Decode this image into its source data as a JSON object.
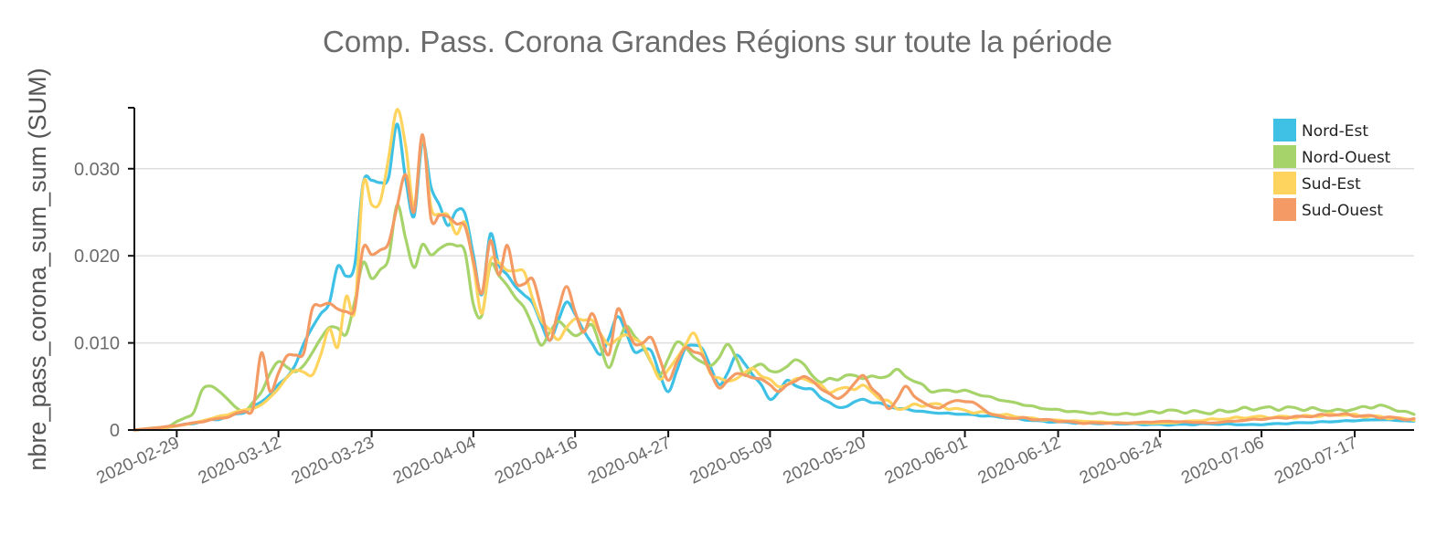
{
  "chart_data": {
    "type": "line",
    "title": "Comp. Pass. Corona Grandes Régions sur toute la période",
    "xlabel": "",
    "ylabel": "nbre_pass_corona_sum_sum (SUM)",
    "x_start": "2020-02-24",
    "x_end": "2020-07-24",
    "ylim": [
      0,
      0.037
    ],
    "y_ticks": [
      "0",
      "0.010",
      "0.020",
      "0.030"
    ],
    "y_tick_values": [
      0,
      0.01,
      0.02,
      0.03
    ],
    "x_tick_labels": [
      "2020-02-29",
      "2020-03-12",
      "2020-03-23",
      "2020-04-04",
      "2020-04-16",
      "2020-04-27",
      "2020-05-09",
      "2020-05-20",
      "2020-06-01",
      "2020-06-12",
      "2020-06-24",
      "2020-07-06",
      "2020-07-17"
    ],
    "grid": true,
    "legend_position": "top-right",
    "series": [
      {
        "name": "Nord-Est",
        "color": "#3fc1e6",
        "points": [
          [
            "2020-02-24",
            0.0
          ],
          [
            "2020-02-28",
            0.0003
          ],
          [
            "2020-03-02",
            0.0008
          ],
          [
            "2020-03-06",
            0.0015
          ],
          [
            "2020-03-09",
            0.0025
          ],
          [
            "2020-03-12",
            0.005
          ],
          [
            "2020-03-14",
            0.0075
          ],
          [
            "2020-03-16",
            0.012
          ],
          [
            "2020-03-18",
            0.0145
          ],
          [
            "2020-03-19",
            0.019
          ],
          [
            "2020-03-20",
            0.0175
          ],
          [
            "2020-03-21",
            0.019
          ],
          [
            "2020-03-22",
            0.0285
          ],
          [
            "2020-03-24",
            0.0285
          ],
          [
            "2020-03-25",
            0.029
          ],
          [
            "2020-03-26",
            0.035
          ],
          [
            "2020-03-27",
            0.029
          ],
          [
            "2020-03-28",
            0.0245
          ],
          [
            "2020-03-29",
            0.033
          ],
          [
            "2020-03-30",
            0.028
          ],
          [
            "2020-04-01",
            0.0235
          ],
          [
            "2020-04-02",
            0.0252
          ],
          [
            "2020-04-03",
            0.0248
          ],
          [
            "2020-04-05",
            0.0155
          ],
          [
            "2020-04-06",
            0.0225
          ],
          [
            "2020-04-07",
            0.019
          ],
          [
            "2020-04-09",
            0.0165
          ],
          [
            "2020-04-11",
            0.0145
          ],
          [
            "2020-04-13",
            0.0102
          ],
          [
            "2020-04-15",
            0.0148
          ],
          [
            "2020-04-17",
            0.0115
          ],
          [
            "2020-04-19",
            0.0085
          ],
          [
            "2020-04-21",
            0.013
          ],
          [
            "2020-04-23",
            0.0092
          ],
          [
            "2020-04-25",
            0.009
          ],
          [
            "2020-04-27",
            0.0042
          ],
          [
            "2020-04-29",
            0.0095
          ],
          [
            "2020-05-01",
            0.0095
          ],
          [
            "2020-05-03",
            0.005
          ],
          [
            "2020-05-05",
            0.0085
          ],
          [
            "2020-05-07",
            0.0065
          ],
          [
            "2020-05-09",
            0.0035
          ],
          [
            "2020-05-11",
            0.0055
          ],
          [
            "2020-05-14",
            0.0045
          ],
          [
            "2020-05-17",
            0.0025
          ],
          [
            "2020-05-20",
            0.0035
          ],
          [
            "2020-05-24",
            0.0025
          ],
          [
            "2020-05-28",
            0.002
          ],
          [
            "2020-06-01",
            0.0018
          ],
          [
            "2020-06-05",
            0.0015
          ],
          [
            "2020-06-10",
            0.001
          ],
          [
            "2020-06-15",
            0.0008
          ],
          [
            "2020-06-20",
            0.0007
          ],
          [
            "2020-06-25",
            0.0006
          ],
          [
            "2020-06-30",
            0.0007
          ],
          [
            "2020-07-05",
            0.0006
          ],
          [
            "2020-07-10",
            0.0008
          ],
          [
            "2020-07-15",
            0.001
          ],
          [
            "2020-07-20",
            0.0012
          ],
          [
            "2020-07-24",
            0.001
          ]
        ]
      },
      {
        "name": "Nord-Ouest",
        "color": "#a7d36b",
        "points": [
          [
            "2020-02-24",
            0.0
          ],
          [
            "2020-02-28",
            0.0004
          ],
          [
            "2020-03-02",
            0.002
          ],
          [
            "2020-03-03",
            0.0045
          ],
          [
            "2020-03-04",
            0.0052
          ],
          [
            "2020-03-06",
            0.0035
          ],
          [
            "2020-03-08",
            0.002
          ],
          [
            "2020-03-10",
            0.0045
          ],
          [
            "2020-03-12",
            0.008
          ],
          [
            "2020-03-14",
            0.0065
          ],
          [
            "2020-03-16",
            0.0088
          ],
          [
            "2020-03-18",
            0.012
          ],
          [
            "2020-03-20",
            0.011
          ],
          [
            "2020-03-22",
            0.019
          ],
          [
            "2020-03-23",
            0.0175
          ],
          [
            "2020-03-25",
            0.0195
          ],
          [
            "2020-03-26",
            0.026
          ],
          [
            "2020-03-27",
            0.022
          ],
          [
            "2020-03-28",
            0.0185
          ],
          [
            "2020-03-29",
            0.0215
          ],
          [
            "2020-03-30",
            0.02
          ],
          [
            "2020-04-01",
            0.0215
          ],
          [
            "2020-04-03",
            0.0205
          ],
          [
            "2020-04-04",
            0.0145
          ],
          [
            "2020-04-05",
            0.013
          ],
          [
            "2020-04-06",
            0.019
          ],
          [
            "2020-04-08",
            0.0165
          ],
          [
            "2020-04-10",
            0.014
          ],
          [
            "2020-04-12",
            0.0098
          ],
          [
            "2020-04-14",
            0.0125
          ],
          [
            "2020-04-16",
            0.0108
          ],
          [
            "2020-04-18",
            0.012
          ],
          [
            "2020-04-20",
            0.0072
          ],
          [
            "2020-04-22",
            0.012
          ],
          [
            "2020-04-24",
            0.0095
          ],
          [
            "2020-04-26",
            0.0062
          ],
          [
            "2020-04-28",
            0.0102
          ],
          [
            "2020-04-30",
            0.0085
          ],
          [
            "2020-05-02",
            0.0072
          ],
          [
            "2020-05-04",
            0.0098
          ],
          [
            "2020-05-06",
            0.0065
          ],
          [
            "2020-05-08",
            0.0075
          ],
          [
            "2020-05-10",
            0.0065
          ],
          [
            "2020-05-12",
            0.0082
          ],
          [
            "2020-05-15",
            0.0055
          ],
          [
            "2020-05-18",
            0.0062
          ],
          [
            "2020-05-22",
            0.006
          ],
          [
            "2020-05-24",
            0.0068
          ],
          [
            "2020-05-28",
            0.0045
          ],
          [
            "2020-06-01",
            0.0045
          ],
          [
            "2020-06-05",
            0.0035
          ],
          [
            "2020-06-10",
            0.0025
          ],
          [
            "2020-06-15",
            0.002
          ],
          [
            "2020-06-20",
            0.0018
          ],
          [
            "2020-06-25",
            0.0022
          ],
          [
            "2020-06-30",
            0.002
          ],
          [
            "2020-07-05",
            0.0025
          ],
          [
            "2020-07-10",
            0.0025
          ],
          [
            "2020-07-15",
            0.0022
          ],
          [
            "2020-07-20",
            0.0028
          ],
          [
            "2020-07-24",
            0.0018
          ]
        ]
      },
      {
        "name": "Sud-Est",
        "color": "#ffd45e",
        "points": [
          [
            "2020-02-24",
            0.0
          ],
          [
            "2020-02-28",
            0.0003
          ],
          [
            "2020-03-02",
            0.0008
          ],
          [
            "2020-03-06",
            0.0018
          ],
          [
            "2020-03-10",
            0.0028
          ],
          [
            "2020-03-12",
            0.0048
          ],
          [
            "2020-03-14",
            0.007
          ],
          [
            "2020-03-16",
            0.0062
          ],
          [
            "2020-03-18",
            0.0115
          ],
          [
            "2020-03-19",
            0.0095
          ],
          [
            "2020-03-20",
            0.0155
          ],
          [
            "2020-03-21",
            0.0135
          ],
          [
            "2020-03-22",
            0.0283
          ],
          [
            "2020-03-23",
            0.026
          ],
          [
            "2020-03-24",
            0.026
          ],
          [
            "2020-03-26",
            0.0368
          ],
          [
            "2020-03-27",
            0.0325
          ],
          [
            "2020-03-28",
            0.026
          ],
          [
            "2020-03-29",
            0.0335
          ],
          [
            "2020-03-30",
            0.0255
          ],
          [
            "2020-04-01",
            0.0245
          ],
          [
            "2020-04-02",
            0.0225
          ],
          [
            "2020-04-03",
            0.024
          ],
          [
            "2020-04-05",
            0.0135
          ],
          [
            "2020-04-06",
            0.0195
          ],
          [
            "2020-04-08",
            0.0185
          ],
          [
            "2020-04-10",
            0.018
          ],
          [
            "2020-04-12",
            0.0125
          ],
          [
            "2020-04-14",
            0.0105
          ],
          [
            "2020-04-16",
            0.0128
          ],
          [
            "2020-04-18",
            0.0125
          ],
          [
            "2020-04-20",
            0.0098
          ],
          [
            "2020-04-22",
            0.011
          ],
          [
            "2020-04-24",
            0.0098
          ],
          [
            "2020-04-26",
            0.0058
          ],
          [
            "2020-04-28",
            0.0082
          ],
          [
            "2020-04-30",
            0.0112
          ],
          [
            "2020-05-02",
            0.0065
          ],
          [
            "2020-05-04",
            0.0055
          ],
          [
            "2020-05-07",
            0.007
          ],
          [
            "2020-05-10",
            0.005
          ],
          [
            "2020-05-13",
            0.006
          ],
          [
            "2020-05-16",
            0.0045
          ],
          [
            "2020-05-20",
            0.005
          ],
          [
            "2020-05-24",
            0.0025
          ],
          [
            "2020-05-28",
            0.003
          ],
          [
            "2020-06-01",
            0.0022
          ],
          [
            "2020-06-05",
            0.0018
          ],
          [
            "2020-06-10",
            0.0012
          ],
          [
            "2020-06-15",
            0.001
          ],
          [
            "2020-06-20",
            0.0008
          ],
          [
            "2020-06-25",
            0.0008
          ],
          [
            "2020-06-30",
            0.0012
          ],
          [
            "2020-07-05",
            0.0015
          ],
          [
            "2020-07-10",
            0.0015
          ],
          [
            "2020-07-15",
            0.0018
          ],
          [
            "2020-07-20",
            0.0015
          ],
          [
            "2020-07-24",
            0.0012
          ]
        ]
      },
      {
        "name": "Sud-Ouest",
        "color": "#f49a64",
        "points": [
          [
            "2020-02-24",
            0.0
          ],
          [
            "2020-02-28",
            0.0004
          ],
          [
            "2020-03-02",
            0.0008
          ],
          [
            "2020-03-06",
            0.0015
          ],
          [
            "2020-03-09",
            0.0025
          ],
          [
            "2020-03-10",
            0.0088
          ],
          [
            "2020-03-11",
            0.0045
          ],
          [
            "2020-03-13",
            0.0085
          ],
          [
            "2020-03-15",
            0.0088
          ],
          [
            "2020-03-16",
            0.014
          ],
          [
            "2020-03-18",
            0.0145
          ],
          [
            "2020-03-20",
            0.0135
          ],
          [
            "2020-03-21",
            0.014
          ],
          [
            "2020-03-22",
            0.021
          ],
          [
            "2020-03-23",
            0.02
          ],
          [
            "2020-03-25",
            0.0215
          ],
          [
            "2020-03-27",
            0.0295
          ],
          [
            "2020-03-28",
            0.025
          ],
          [
            "2020-03-29",
            0.0338
          ],
          [
            "2020-03-30",
            0.0245
          ],
          [
            "2020-04-01",
            0.0245
          ],
          [
            "2020-04-03",
            0.0232
          ],
          [
            "2020-04-05",
            0.0158
          ],
          [
            "2020-04-06",
            0.0215
          ],
          [
            "2020-04-07",
            0.018
          ],
          [
            "2020-04-08",
            0.0212
          ],
          [
            "2020-04-09",
            0.0168
          ],
          [
            "2020-04-11",
            0.0172
          ],
          [
            "2020-04-13",
            0.0105
          ],
          [
            "2020-04-15",
            0.0165
          ],
          [
            "2020-04-17",
            0.011
          ],
          [
            "2020-04-18",
            0.0135
          ],
          [
            "2020-04-20",
            0.0085
          ],
          [
            "2020-04-21",
            0.014
          ],
          [
            "2020-04-23",
            0.0098
          ],
          [
            "2020-04-25",
            0.0105
          ],
          [
            "2020-04-27",
            0.0058
          ],
          [
            "2020-04-29",
            0.0095
          ],
          [
            "2020-05-01",
            0.0085
          ],
          [
            "2020-05-03",
            0.0048
          ],
          [
            "2020-05-05",
            0.0065
          ],
          [
            "2020-05-08",
            0.0058
          ],
          [
            "2020-05-10",
            0.0045
          ],
          [
            "2020-05-13",
            0.0062
          ],
          [
            "2020-05-17",
            0.0035
          ],
          [
            "2020-05-20",
            0.0062
          ],
          [
            "2020-05-23",
            0.0025
          ],
          [
            "2020-05-25",
            0.0048
          ],
          [
            "2020-05-28",
            0.0025
          ],
          [
            "2020-06-01",
            0.0035
          ],
          [
            "2020-06-05",
            0.0015
          ],
          [
            "2020-06-10",
            0.0012
          ],
          [
            "2020-06-15",
            0.0008
          ],
          [
            "2020-06-20",
            0.0008
          ],
          [
            "2020-06-25",
            0.001
          ],
          [
            "2020-06-30",
            0.0008
          ],
          [
            "2020-07-05",
            0.0012
          ],
          [
            "2020-07-10",
            0.0015
          ],
          [
            "2020-07-15",
            0.0018
          ],
          [
            "2020-07-20",
            0.0015
          ],
          [
            "2020-07-24",
            0.0012
          ]
        ]
      }
    ]
  }
}
